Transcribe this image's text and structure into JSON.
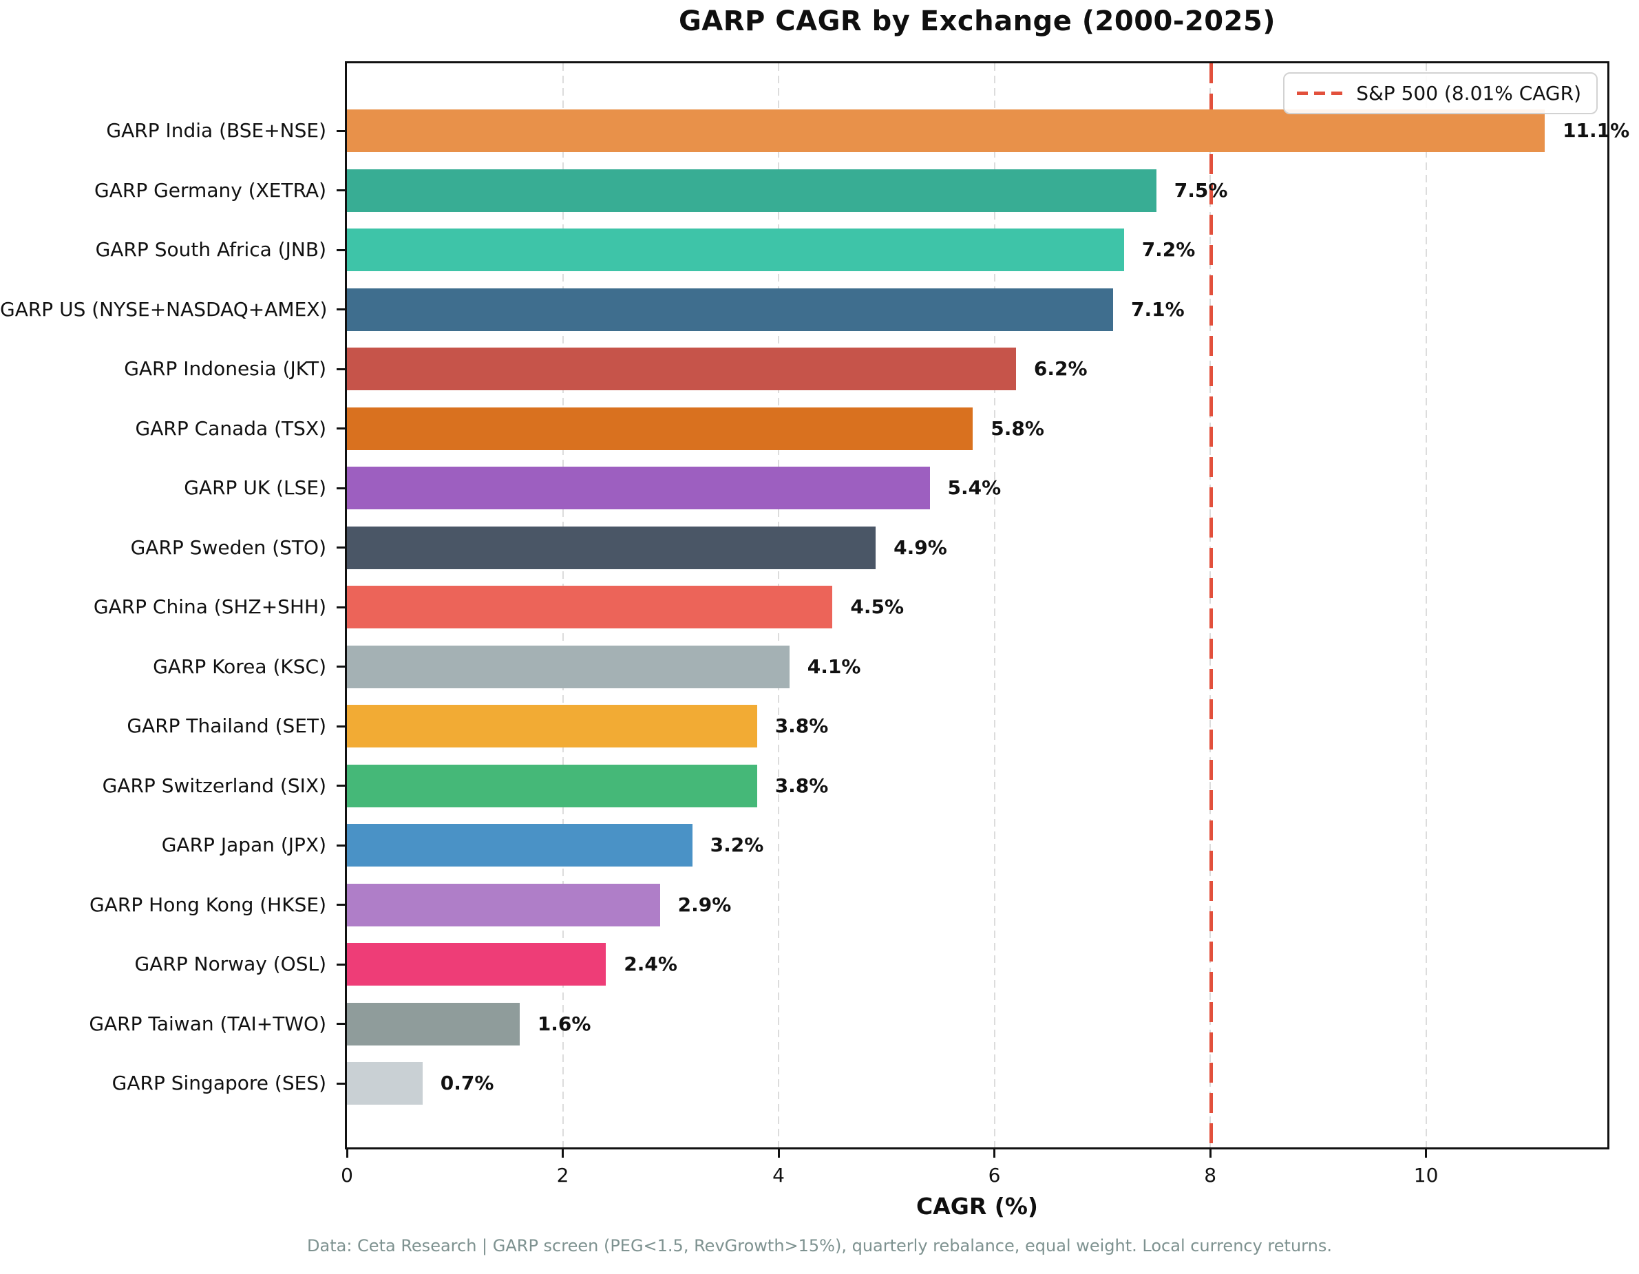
{
  "title": "GARP CAGR by Exchange (2000-2025)",
  "legend": {
    "label": "S&P 500 (8.01% CAGR)"
  },
  "footer": "Data: Ceta Research | GARP screen (PEG<1.5, RevGrowth>15%), quarterly rebalance, equal weight. Local currency returns.",
  "chart_data": {
    "type": "bar",
    "orientation": "horizontal",
    "title": "GARP CAGR by Exchange (2000-2025)",
    "xlabel": "CAGR (%)",
    "ylabel": "",
    "xlim": [
      0,
      11.68
    ],
    "x_ticks": [
      0,
      2,
      4,
      6,
      8,
      10
    ],
    "grid": true,
    "legend_position": "upper right",
    "reference_line": {
      "label": "S&P 500 (8.01% CAGR)",
      "value": 8.01,
      "color": "#e2503c",
      "style": "dashed"
    },
    "categories": [
      "GARP India (BSE+NSE)",
      "GARP Germany (XETRA)",
      "GARP South Africa (JNB)",
      "GARP US (NYSE+NASDAQ+AMEX)",
      "GARP Indonesia (JKT)",
      "GARP Canada (TSX)",
      "GARP UK (LSE)",
      "GARP Sweden (STO)",
      "GARP China (SHZ+SHH)",
      "GARP Korea (KSC)",
      "GARP Thailand (SET)",
      "GARP Switzerland (SIX)",
      "GARP Japan (JPX)",
      "GARP Hong Kong (HKSE)",
      "GARP Norway (OSL)",
      "GARP Taiwan (TAI+TWO)",
      "GARP Singapore (SES)"
    ],
    "values": [
      11.1,
      7.5,
      7.2,
      7.1,
      6.2,
      5.8,
      5.4,
      4.9,
      4.5,
      4.1,
      3.8,
      3.8,
      3.2,
      2.9,
      2.4,
      1.6,
      0.7
    ],
    "value_labels": [
      "11.1%",
      "7.5%",
      "7.2%",
      "7.1%",
      "6.2%",
      "5.8%",
      "5.4%",
      "4.9%",
      "4.5%",
      "4.1%",
      "3.8%",
      "3.8%",
      "3.2%",
      "2.9%",
      "2.4%",
      "1.6%",
      "0.7%"
    ],
    "bar_colors": [
      "#e8914a",
      "#38ad94",
      "#3ec4a8",
      "#3f6e8e",
      "#c6544a",
      "#d9711f",
      "#9d5fc0",
      "#4a5666",
      "#ec6459",
      "#a4b1b4",
      "#f2ab34",
      "#45b878",
      "#4a92c6",
      "#af7ec8",
      "#ee3d77",
      "#8f9c9b",
      "#c9d0d4"
    ]
  }
}
